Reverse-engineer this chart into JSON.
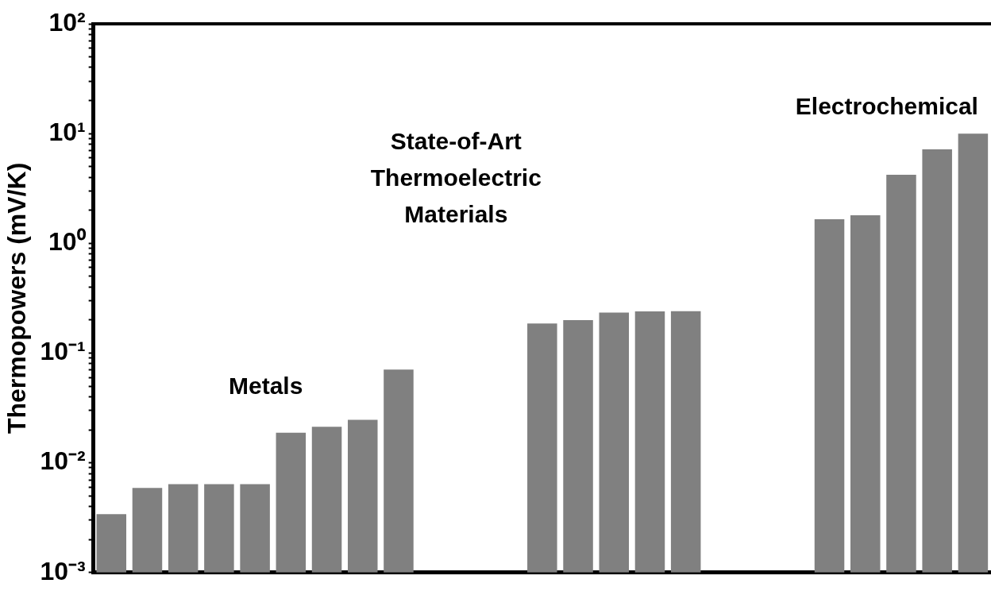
{
  "chart_data": {
    "type": "bar",
    "ylabel": "Thermopowers (mV/K)",
    "log": true,
    "grid": false,
    "legend": false,
    "color": "#808080",
    "categories": [
      null,
      null,
      null,
      null,
      null,
      null,
      null,
      null,
      null,
      null,
      null,
      null,
      null,
      null,
      null,
      null,
      null,
      null,
      null,
      null,
      null,
      null,
      null,
      null,
      null
    ],
    "values": [
      0.0034,
      0.0059,
      0.0064,
      0.0064,
      0.0064,
      0.0188,
      0.0213,
      0.0247,
      0.0706,
      null,
      null,
      null,
      0.186,
      0.2,
      0.234,
      0.24,
      0.241,
      null,
      null,
      null,
      1.66,
      1.8,
      4.21,
      7.19,
      10
    ],
    "ylim": [
      0.001,
      100
    ],
    "yticks": [
      {
        "value": 0.001,
        "label": "10⁻³"
      },
      {
        "value": 0.002,
        "label": null
      },
      {
        "value": 0.003,
        "label": null
      },
      {
        "value": 0.004,
        "label": null
      },
      {
        "value": 0.005,
        "label": null
      },
      {
        "value": 0.006,
        "label": null
      },
      {
        "value": 0.007,
        "label": null
      },
      {
        "value": 0.008,
        "label": null
      },
      {
        "value": 0.009,
        "label": null
      },
      {
        "value": 0.01,
        "label": "10⁻²"
      },
      {
        "value": 0.02,
        "label": null
      },
      {
        "value": 0.03,
        "label": null
      },
      {
        "value": 0.04,
        "label": null
      },
      {
        "value": 0.05,
        "label": null
      },
      {
        "value": 0.06,
        "label": null
      },
      {
        "value": 0.07,
        "label": null
      },
      {
        "value": 0.08,
        "label": null
      },
      {
        "value": 0.09,
        "label": null
      },
      {
        "value": 0.1,
        "label": "10⁻¹"
      },
      {
        "value": 0.2,
        "label": null
      },
      {
        "value": 0.3,
        "label": null
      },
      {
        "value": 0.4,
        "label": null
      },
      {
        "value": 0.5,
        "label": null
      },
      {
        "value": 0.6,
        "label": null
      },
      {
        "value": 0.7,
        "label": null
      },
      {
        "value": 0.8,
        "label": null
      },
      {
        "value": 0.9,
        "label": null
      },
      {
        "value": 1,
        "label": "10⁰"
      },
      {
        "value": 2,
        "label": null
      },
      {
        "value": 3,
        "label": null
      },
      {
        "value": 4,
        "label": null
      },
      {
        "value": 5,
        "label": null
      },
      {
        "value": 6,
        "label": null
      },
      {
        "value": 7,
        "label": null
      },
      {
        "value": 8,
        "label": null
      },
      {
        "value": 9,
        "label": null
      },
      {
        "value": 10,
        "label": "10¹"
      },
      {
        "value": 20,
        "label": null
      },
      {
        "value": 30,
        "label": null
      },
      {
        "value": 40,
        "label": null
      },
      {
        "value": 50,
        "label": null
      },
      {
        "value": 60,
        "label": null
      },
      {
        "value": 70,
        "label": null
      },
      {
        "value": 80,
        "label": null
      },
      {
        "value": 90,
        "label": null
      },
      {
        "value": 100,
        "label": "10²"
      }
    ],
    "annotations": [
      "Metals",
      "State-of-Art\nThermoelectric\nMaterials",
      "Electrochemical"
    ]
  }
}
